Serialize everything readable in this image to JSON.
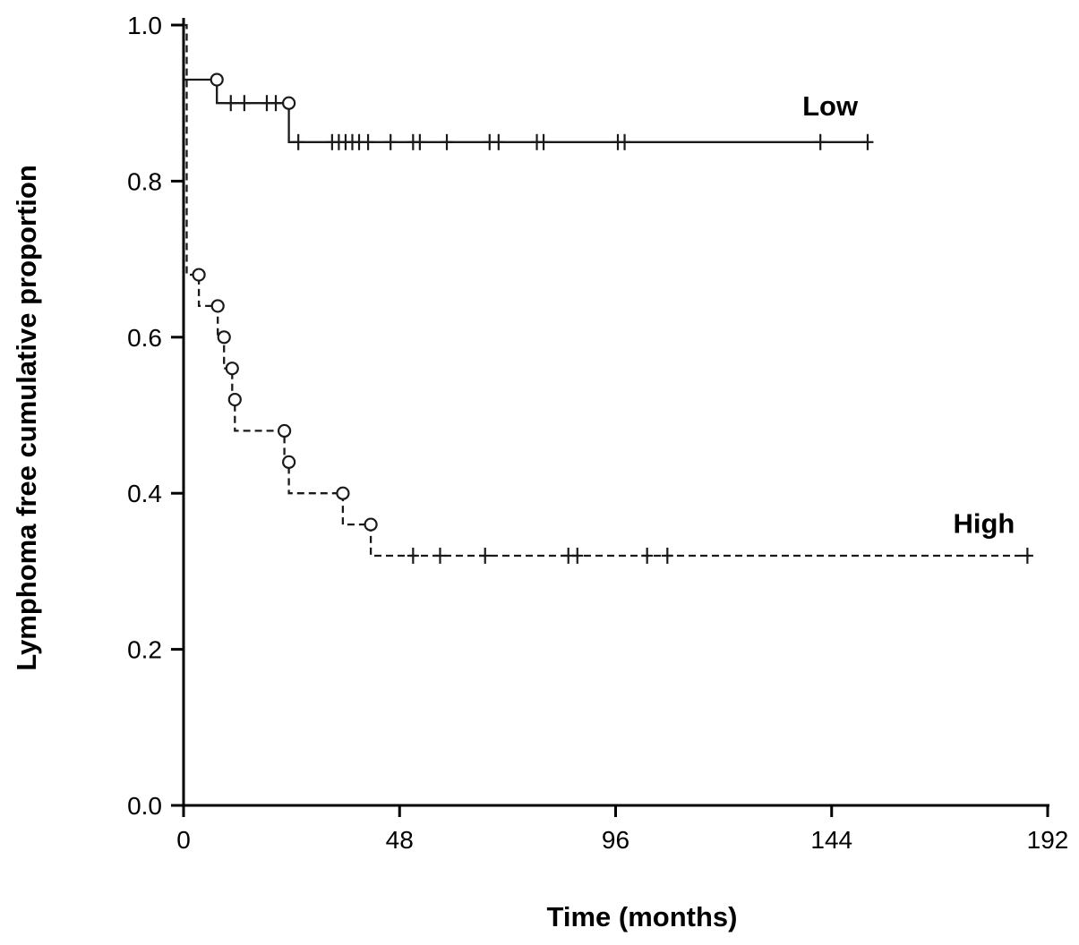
{
  "chart_data": {
    "type": "line",
    "subtype": "kaplan_meier_step",
    "title": "",
    "xlabel": "Time (months)",
    "ylabel": "Lymphoma free cumulative proportion",
    "xlim": [
      0,
      192
    ],
    "ylim": [
      0.0,
      1.0
    ],
    "xticks": {
      "values": [
        0,
        48,
        96,
        144,
        192
      ],
      "labels": [
        "0",
        "48",
        "96",
        "144",
        "192"
      ]
    },
    "yticks": {
      "values": [
        0.0,
        0.2,
        0.4,
        0.6,
        0.8,
        1.0
      ],
      "labels": [
        "0.0",
        "0.2",
        "0.4",
        "0.6",
        "0.8",
        "1.0"
      ]
    },
    "grid": false,
    "background": "#ffffff",
    "axis_color": "#000000",
    "marker_legend": {
      "event": "open-circle",
      "censored": "plus-cross"
    },
    "series": [
      {
        "name": "Low",
        "label": "Low",
        "line_style": "solid",
        "color": "#1a1a1a",
        "steps": [
          [
            0,
            0.93
          ],
          [
            7.4,
            0.93
          ],
          [
            7.4,
            0.9
          ],
          [
            23.4,
            0.9
          ],
          [
            23.4,
            0.85
          ],
          [
            152,
            0.85
          ]
        ],
        "event_markers": [
          [
            7.4,
            0.93
          ],
          [
            23.4,
            0.9
          ]
        ],
        "censor_markers": [
          [
            10.5,
            0.9
          ],
          [
            13.5,
            0.9
          ],
          [
            18.5,
            0.9
          ],
          [
            20.5,
            0.9
          ],
          [
            25.5,
            0.85
          ],
          [
            33,
            0.85
          ],
          [
            34.5,
            0.85
          ],
          [
            36,
            0.85
          ],
          [
            37.5,
            0.85
          ],
          [
            39,
            0.85
          ],
          [
            41,
            0.85
          ],
          [
            46,
            0.85
          ],
          [
            51,
            0.85
          ],
          [
            52.5,
            0.85
          ],
          [
            58.5,
            0.85
          ],
          [
            68,
            0.85
          ],
          [
            70,
            0.85
          ],
          [
            78.5,
            0.85
          ],
          [
            80,
            0.85
          ],
          [
            96.5,
            0.85
          ],
          [
            98,
            0.85
          ],
          [
            141.5,
            0.85
          ],
          [
            152,
            0.85
          ]
        ],
        "label_pos": [
          137.5,
          0.897
        ]
      },
      {
        "name": "High",
        "label": "High",
        "line_style": "dashed",
        "color": "#1a1a1a",
        "steps": [
          [
            0,
            1.0
          ],
          [
            0.7,
            1.0
          ],
          [
            0.7,
            0.68
          ],
          [
            3.4,
            0.68
          ],
          [
            3.4,
            0.64
          ],
          [
            7.6,
            0.64
          ],
          [
            7.6,
            0.6
          ],
          [
            9.0,
            0.6
          ],
          [
            9.0,
            0.56
          ],
          [
            10.8,
            0.56
          ],
          [
            10.8,
            0.52
          ],
          [
            11.4,
            0.52
          ],
          [
            11.4,
            0.48
          ],
          [
            22.4,
            0.48
          ],
          [
            22.4,
            0.44
          ],
          [
            23.4,
            0.44
          ],
          [
            23.4,
            0.4
          ],
          [
            35.4,
            0.4
          ],
          [
            35.4,
            0.36
          ],
          [
            41.6,
            0.36
          ],
          [
            41.6,
            0.32
          ],
          [
            188,
            0.32
          ]
        ],
        "event_markers": [
          [
            3.4,
            0.68
          ],
          [
            7.6,
            0.64
          ],
          [
            9.0,
            0.6
          ],
          [
            10.8,
            0.56
          ],
          [
            11.4,
            0.52
          ],
          [
            22.4,
            0.48
          ],
          [
            23.4,
            0.44
          ],
          [
            35.4,
            0.4
          ],
          [
            41.6,
            0.36
          ]
        ],
        "censor_markers": [
          [
            51,
            0.32
          ],
          [
            57,
            0.32
          ],
          [
            67,
            0.32
          ],
          [
            85.5,
            0.32
          ],
          [
            87.5,
            0.32
          ],
          [
            103,
            0.32
          ],
          [
            107.5,
            0.32
          ],
          [
            187.5,
            0.32
          ]
        ],
        "label_pos": [
          171,
          0.362
        ]
      }
    ]
  }
}
